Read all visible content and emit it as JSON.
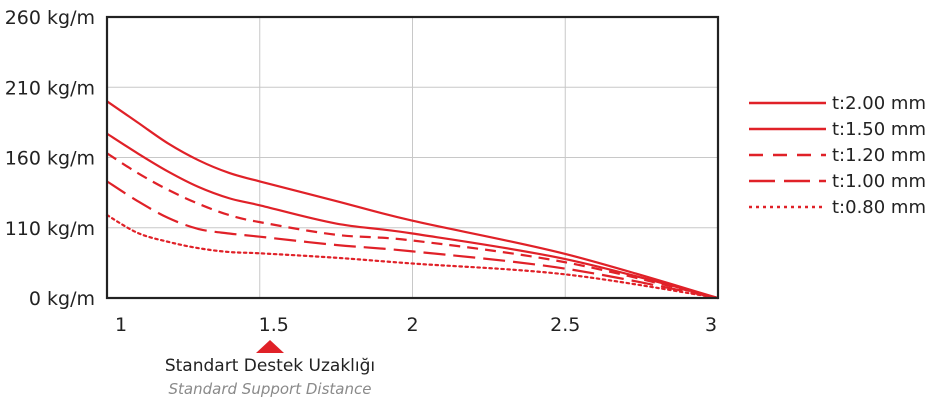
{
  "chart_data": {
    "type": "line",
    "x_ticks": [
      "1",
      "1.5",
      "2",
      "2.5",
      "3"
    ],
    "y_ticks": [
      "0 kg/m",
      "110 kg/m",
      "160 kg/m",
      "210 kg/m",
      "260 kg/m"
    ],
    "series": [
      {
        "name": "t:2.00 mm",
        "style": "solid",
        "x": [
          1.0,
          1.1,
          1.2,
          1.3,
          1.4,
          1.5,
          1.75,
          2.0,
          2.5,
          3.0
        ],
        "y": [
          200,
          185,
          170,
          158,
          149,
          143,
          129,
          115,
          69,
          0
        ]
      },
      {
        "name": "t:1.50 mm",
        "style": "solid",
        "x": [
          1.0,
          1.1,
          1.2,
          1.3,
          1.4,
          1.5,
          1.75,
          2.0,
          2.5,
          3.0
        ],
        "y": [
          177,
          163,
          150,
          139,
          131,
          126,
          113,
          101,
          61,
          0
        ]
      },
      {
        "name": "t:1.20 mm",
        "style": "dashed",
        "x": [
          1.0,
          1.1,
          1.2,
          1.3,
          1.4,
          1.5,
          1.75,
          2.0,
          2.5,
          3.0
        ],
        "y": [
          163,
          149,
          137,
          127,
          119,
          114,
          99,
          90,
          56,
          0
        ]
      },
      {
        "name": "t:1.00 mm",
        "style": "longdash",
        "x": [
          1.0,
          1.1,
          1.2,
          1.3,
          1.4,
          1.5,
          1.75,
          2.0,
          2.5,
          3.0
        ],
        "y": [
          143,
          129,
          117,
          108,
          101,
          96,
          83,
          73,
          46,
          0
        ]
      },
      {
        "name": "t:0.80 mm",
        "style": "dotted",
        "x": [
          1.0,
          1.1,
          1.2,
          1.3,
          1.4,
          1.5,
          1.75,
          2.0,
          2.5,
          3.0
        ],
        "y": [
          119,
          102,
          88,
          78,
          72,
          70,
          63,
          54,
          37,
          0
        ]
      }
    ],
    "legend_position": "right",
    "grid": true,
    "line_color": "#e02128",
    "marker": {
      "position_x": 1.5,
      "title": "Standart Destek Uzaklığı",
      "subtitle": "Standard Support Distance",
      "color": "#e02128"
    }
  }
}
